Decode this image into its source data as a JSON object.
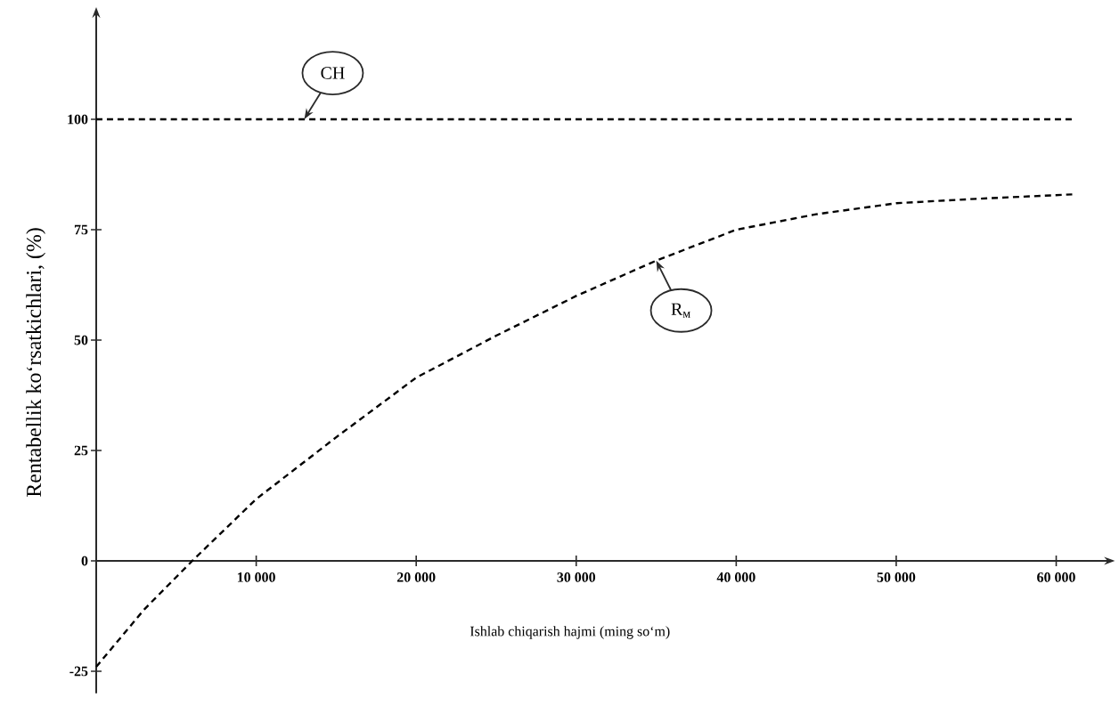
{
  "chart_data": {
    "type": "line",
    "xlabel": "Ishlab chiqarish hajmi (ming so‘m)",
    "ylabel": "Rentabellik ko‘rsatkichlari, (%)",
    "series": [
      {
        "name": "CH",
        "color": "#000000",
        "x": [
          0,
          13000,
          61000
        ],
        "values": [
          100,
          100,
          100
        ]
      },
      {
        "name": "R$_{м}$",
        "color": "#000000",
        "x": [
          0,
          3000,
          6000,
          10000,
          15000,
          20000,
          25000,
          30000,
          35000,
          40000,
          45000,
          50000,
          55000,
          61000
        ],
        "values": [
          -24,
          -11,
          0,
          14,
          28,
          41.5,
          51,
          60,
          68,
          75,
          78.5,
          81,
          82,
          83
        ]
      }
    ],
    "xlim": [
      0,
      63000
    ],
    "ylim": [
      -30,
      123
    ],
    "xticks": [
      {
        "value": 10000,
        "label": "10 000"
      },
      {
        "value": 20000,
        "label": "20 000"
      },
      {
        "value": 30000,
        "label": "30 000"
      },
      {
        "value": 40000,
        "label": "40 000"
      },
      {
        "value": 50000,
        "label": "50 000"
      },
      {
        "value": 60000,
        "label": "60 000"
      }
    ],
    "yticks": [
      -25,
      0,
      25,
      50,
      75,
      100
    ],
    "legend": false,
    "grid": false,
    "marker": "none",
    "line_style": "dashed"
  }
}
